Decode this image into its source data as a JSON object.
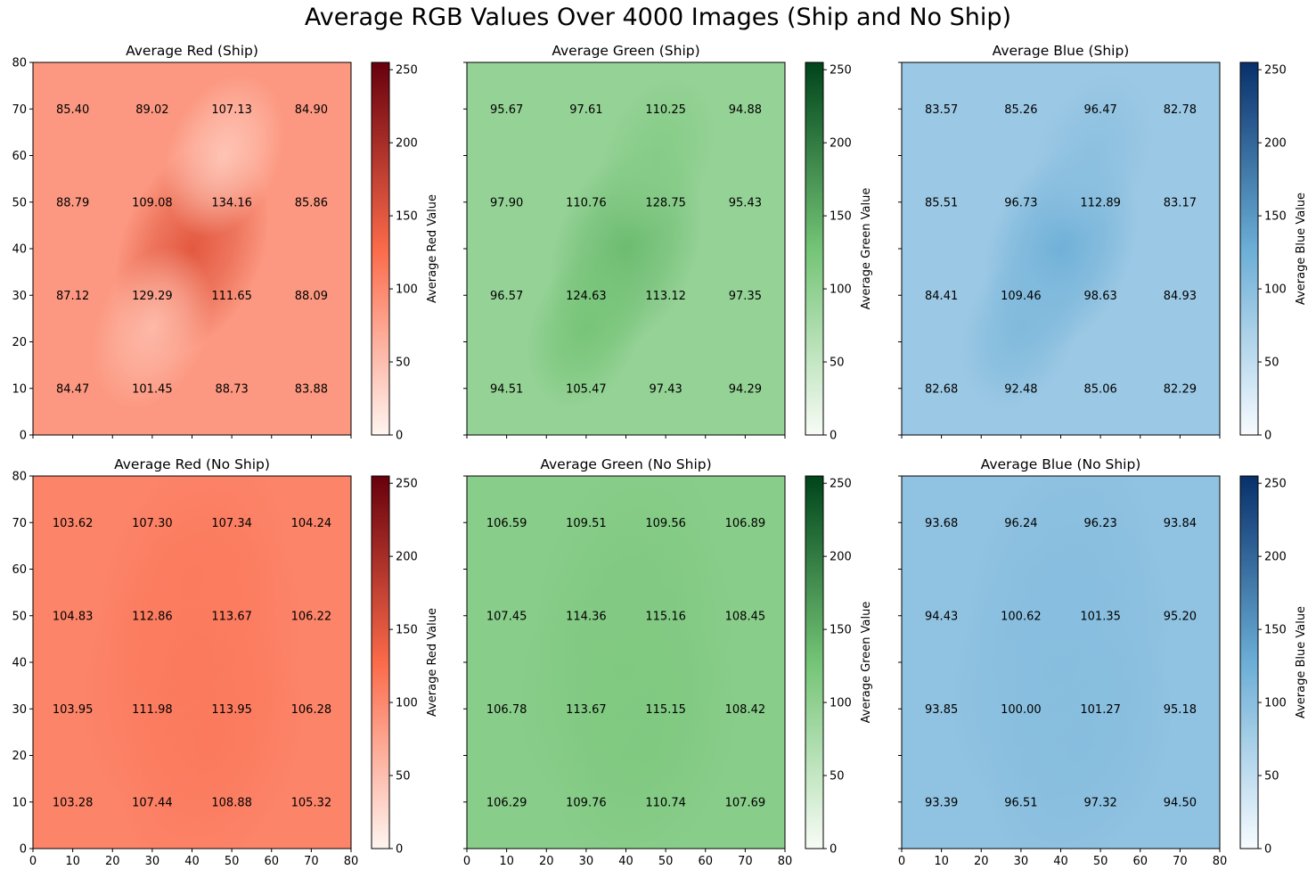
{
  "figure": {
    "title": "Average RGB Values Over 4000 Images (Ship and No Ship)"
  },
  "colors": {
    "Reds": {
      "light": "#fff5f0",
      "mid": "#fb6a4a",
      "dark": "#67000d"
    },
    "Greens": {
      "light": "#f7fcf5",
      "mid": "#74c476",
      "dark": "#00441b"
    },
    "Blues": {
      "light": "#f7fbff",
      "mid": "#6baed6",
      "dark": "#08306b"
    }
  },
  "chart_data": [
    {
      "type": "heatmap",
      "title": "Average Red (Ship)",
      "colormap": "Reds",
      "colorbar_label": "Average Red Value",
      "xlim": [
        0,
        80
      ],
      "ylim": [
        0,
        80
      ],
      "vlim": [
        0,
        255
      ],
      "xticks": [
        0,
        10,
        20,
        30,
        40,
        50,
        60,
        70,
        80
      ],
      "yticks": [
        0,
        10,
        20,
        30,
        40,
        50,
        60,
        70,
        80
      ],
      "cbar_ticks": [
        0,
        50,
        100,
        150,
        200,
        250
      ],
      "background": 85,
      "blobs": [
        [
          40,
          40,
          9,
          148
        ],
        [
          30,
          23,
          7,
          55
        ],
        [
          48,
          60,
          7,
          45
        ]
      ],
      "annotation_x": [
        10,
        30,
        50,
        70
      ],
      "annotation_y": [
        70,
        50,
        30,
        10
      ],
      "values": [
        [
          "85.40",
          "89.02",
          "107.13",
          "84.90"
        ],
        [
          "88.79",
          "109.08",
          "134.16",
          "85.86"
        ],
        [
          "87.12",
          "129.29",
          "111.65",
          "88.09"
        ],
        [
          "84.47",
          "101.45",
          "88.73",
          "83.88"
        ]
      ]
    },
    {
      "type": "heatmap",
      "title": "Average Green (Ship)",
      "colormap": "Greens",
      "colorbar_label": "Average Green Value",
      "xlim": [
        0,
        80
      ],
      "ylim": [
        0,
        80
      ],
      "vlim": [
        0,
        255
      ],
      "xticks": [
        0,
        10,
        20,
        30,
        40,
        50,
        60,
        70,
        80
      ],
      "yticks": [
        0,
        10,
        20,
        30,
        40,
        50,
        60,
        70,
        80
      ],
      "cbar_ticks": [
        0,
        50,
        100,
        150,
        200,
        250
      ],
      "background": 95,
      "blobs": [
        [
          40,
          40,
          9,
          135
        ],
        [
          30,
          23,
          7,
          125
        ],
        [
          48,
          60,
          7,
          110
        ]
      ],
      "annotation_x": [
        10,
        30,
        50,
        70
      ],
      "annotation_y": [
        70,
        50,
        30,
        10
      ],
      "values": [
        [
          "95.67",
          "97.61",
          "110.25",
          "94.88"
        ],
        [
          "97.90",
          "110.76",
          "128.75",
          "95.43"
        ],
        [
          "96.57",
          "124.63",
          "113.12",
          "97.35"
        ],
        [
          "94.51",
          "105.47",
          "97.43",
          "94.29"
        ]
      ]
    },
    {
      "type": "heatmap",
      "title": "Average Blue (Ship)",
      "colormap": "Blues",
      "colorbar_label": "Average Blue Value",
      "xlim": [
        0,
        80
      ],
      "ylim": [
        0,
        80
      ],
      "vlim": [
        0,
        255
      ],
      "xticks": [
        0,
        10,
        20,
        30,
        40,
        50,
        60,
        70,
        80
      ],
      "yticks": [
        0,
        10,
        20,
        30,
        40,
        50,
        60,
        70,
        80
      ],
      "cbar_ticks": [
        0,
        50,
        100,
        150,
        200,
        250
      ],
      "background": 84,
      "blobs": [
        [
          40,
          40,
          9,
          122
        ],
        [
          30,
          23,
          7,
          108
        ],
        [
          48,
          60,
          7,
          97
        ]
      ],
      "annotation_x": [
        10,
        30,
        50,
        70
      ],
      "annotation_y": [
        70,
        50,
        30,
        10
      ],
      "values": [
        [
          "83.57",
          "85.26",
          "96.47",
          "82.78"
        ],
        [
          "85.51",
          "96.73",
          "112.89",
          "83.17"
        ],
        [
          "84.41",
          "109.46",
          "98.63",
          "84.93"
        ],
        [
          "82.68",
          "92.48",
          "85.06",
          "82.29"
        ]
      ]
    },
    {
      "type": "heatmap",
      "title": "Average Red (No Ship)",
      "colormap": "Reds",
      "colorbar_label": "Average Red Value",
      "xlim": [
        0,
        80
      ],
      "ylim": [
        0,
        80
      ],
      "vlim": [
        0,
        255
      ],
      "xticks": [
        0,
        10,
        20,
        30,
        40,
        50,
        60,
        70,
        80
      ],
      "yticks": [
        0,
        10,
        20,
        30,
        40,
        50,
        60,
        70,
        80
      ],
      "cbar_ticks": [
        0,
        50,
        100,
        150,
        200,
        250
      ],
      "background": 104,
      "blobs": [
        [
          40,
          40,
          13,
          114
        ],
        [
          45,
          22,
          11,
          113
        ],
        [
          40,
          58,
          11,
          112
        ]
      ],
      "annotation_x": [
        10,
        30,
        50,
        70
      ],
      "annotation_y": [
        70,
        50,
        30,
        10
      ],
      "values": [
        [
          "103.62",
          "107.30",
          "107.34",
          "104.24"
        ],
        [
          "104.83",
          "112.86",
          "113.67",
          "106.22"
        ],
        [
          "103.95",
          "111.98",
          "113.95",
          "106.28"
        ],
        [
          "103.28",
          "107.44",
          "108.88",
          "105.32"
        ]
      ]
    },
    {
      "type": "heatmap",
      "title": "Average Green (No Ship)",
      "colormap": "Greens",
      "colorbar_label": "Average Green Value",
      "xlim": [
        0,
        80
      ],
      "ylim": [
        0,
        80
      ],
      "vlim": [
        0,
        255
      ],
      "xticks": [
        0,
        10,
        20,
        30,
        40,
        50,
        60,
        70,
        80
      ],
      "yticks": [
        0,
        10,
        20,
        30,
        40,
        50,
        60,
        70,
        80
      ],
      "cbar_ticks": [
        0,
        50,
        100,
        150,
        200,
        250
      ],
      "background": 107,
      "blobs": [
        [
          40,
          40,
          13,
          117
        ],
        [
          45,
          22,
          11,
          116
        ],
        [
          40,
          58,
          11,
          114
        ]
      ],
      "annotation_x": [
        10,
        30,
        50,
        70
      ],
      "annotation_y": [
        70,
        50,
        30,
        10
      ],
      "values": [
        [
          "106.59",
          "109.51",
          "109.56",
          "106.89"
        ],
        [
          "107.45",
          "114.36",
          "115.16",
          "108.45"
        ],
        [
          "106.78",
          "113.67",
          "115.15",
          "108.42"
        ],
        [
          "106.29",
          "109.76",
          "110.74",
          "107.69"
        ]
      ]
    },
    {
      "type": "heatmap",
      "title": "Average Blue (No Ship)",
      "colormap": "Blues",
      "colorbar_label": "Average Blue Value",
      "xlim": [
        0,
        80
      ],
      "ylim": [
        0,
        80
      ],
      "vlim": [
        0,
        255
      ],
      "xticks": [
        0,
        10,
        20,
        30,
        40,
        50,
        60,
        70,
        80
      ],
      "yticks": [
        0,
        10,
        20,
        30,
        40,
        50,
        60,
        70,
        80
      ],
      "cbar_ticks": [
        0,
        50,
        100,
        150,
        200,
        250
      ],
      "background": 94,
      "blobs": [
        [
          40,
          40,
          13,
          103
        ],
        [
          45,
          22,
          11,
          102
        ],
        [
          40,
          58,
          11,
          101
        ]
      ],
      "annotation_x": [
        10,
        30,
        50,
        70
      ],
      "annotation_y": [
        70,
        50,
        30,
        10
      ],
      "values": [
        [
          "93.68",
          "96.24",
          "96.23",
          "93.84"
        ],
        [
          "94.43",
          "100.62",
          "101.35",
          "95.20"
        ],
        [
          "93.85",
          "100.00",
          "101.27",
          "95.18"
        ],
        [
          "93.39",
          "96.51",
          "97.32",
          "94.50"
        ]
      ]
    }
  ]
}
